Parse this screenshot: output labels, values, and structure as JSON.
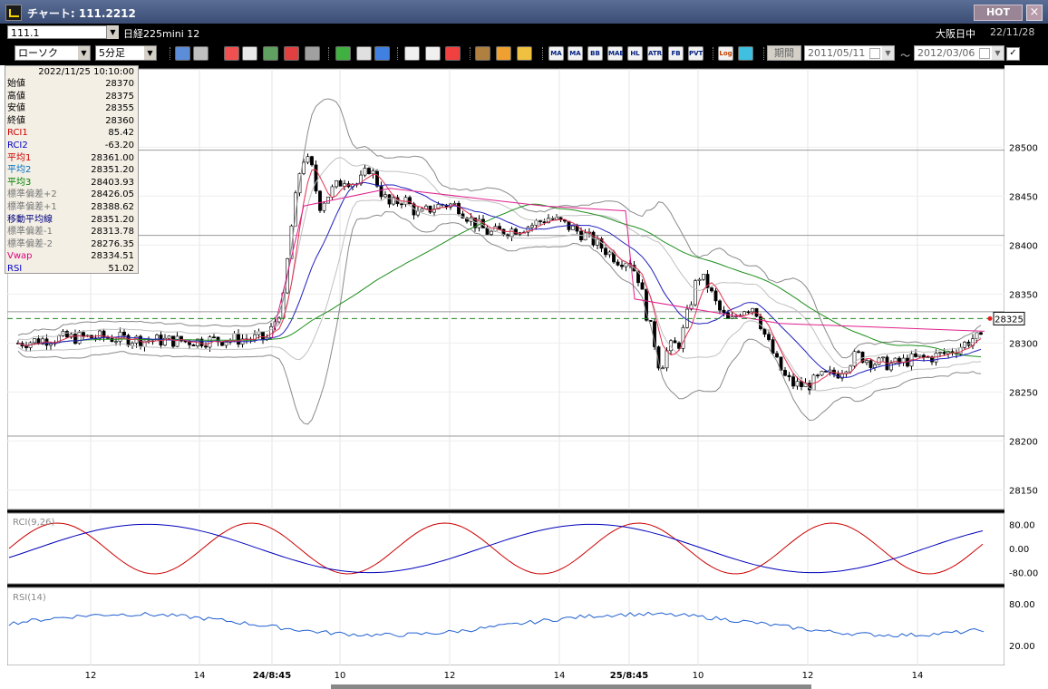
{
  "window": {
    "title": "チャート: 111.2212",
    "hot_label": "HOT",
    "close_label": "×"
  },
  "toolbar1": {
    "symbol": "111.1",
    "instrument": "日経225mini 12",
    "session": "大阪日中",
    "date": "22/11/28"
  },
  "toolbar2": {
    "chart_type": "ローソク",
    "interval": "5分足",
    "period_label": "期間",
    "date_from": "2011/05/11",
    "date_to": "2012/03/06",
    "tilde": "～",
    "buttons": [
      "zoom-icon",
      "crosshair-icon",
      "download-icon",
      "search-chart-icon",
      "bar-chart-icon",
      "split-icon",
      "warning-icon",
      "pen-icon",
      "cursor-icon",
      "undo-icon",
      "candle-icon",
      "candle2-icon",
      "all-icon",
      "settings-icon",
      "brush-icon",
      "color-icon",
      "MA",
      "MA",
      "BB",
      "MAE",
      "HL",
      "ATR",
      "FB",
      "PVT",
      "Log",
      "image-icon"
    ]
  },
  "info": {
    "datetime": "2022/11/25  10:10:00",
    "rows": [
      {
        "label": "始値",
        "value": "28370",
        "color": "#000000"
      },
      {
        "label": "高値",
        "value": "28375",
        "color": "#000000"
      },
      {
        "label": "安値",
        "value": "28355",
        "color": "#000000"
      },
      {
        "label": "終値",
        "value": "28360",
        "color": "#000000"
      },
      {
        "label": "RCI1",
        "value": "85.42",
        "color": "#cc0000"
      },
      {
        "label": "RCI2",
        "value": "-63.20",
        "color": "#0000cc"
      },
      {
        "label": "平均1",
        "value": "28361.00",
        "color": "#cc0000"
      },
      {
        "label": "平均2",
        "value": "28351.20",
        "color": "#0070c0"
      },
      {
        "label": "平均3",
        "value": "28403.93",
        "color": "#008000"
      },
      {
        "label": "標準偏差+2",
        "value": "28426.05",
        "color": "#777777"
      },
      {
        "label": "標準偏差+1",
        "value": "28388.62",
        "color": "#777777"
      },
      {
        "label": "移動平均線",
        "value": "28351.20",
        "color": "#000080"
      },
      {
        "label": "標準偏差-1",
        "value": "28313.78",
        "color": "#777777"
      },
      {
        "label": "標準偏差-2",
        "value": "28276.35",
        "color": "#777777"
      },
      {
        "label": "Vwap",
        "value": "28334.51",
        "color": "#e00080"
      },
      {
        "label": "RSI",
        "value": "51.02",
        "color": "#0000cc"
      }
    ]
  },
  "chart_data": {
    "type": "candlestick",
    "y_ticks": [
      28500,
      28450,
      28400,
      28350,
      28300,
      28250,
      28200,
      28150
    ],
    "y_range": [
      28130,
      28580
    ],
    "current_price": "28325",
    "x_ticks": [
      "12",
      "14",
      "24/8:45",
      "10",
      "12",
      "14",
      "25/8:45",
      "10",
      "12",
      "14"
    ],
    "rci_label": "RCI(9,26)",
    "rci_ticks": [
      "80.00",
      "0.00",
      "-80.00"
    ],
    "rsi_label": "RSI(14)",
    "rsi_ticks": [
      "80.00",
      "20.00"
    ],
    "colors": {
      "ma1": "#e03050",
      "ma2": "#2020c0",
      "ma3": "#1f8f1f",
      "bb": "#a0a0a0",
      "vwap": "#e0208c",
      "rci1": "#cc0000",
      "rci2": "#0000bb",
      "rsi": "#2060d0",
      "current": "#228822"
    }
  }
}
